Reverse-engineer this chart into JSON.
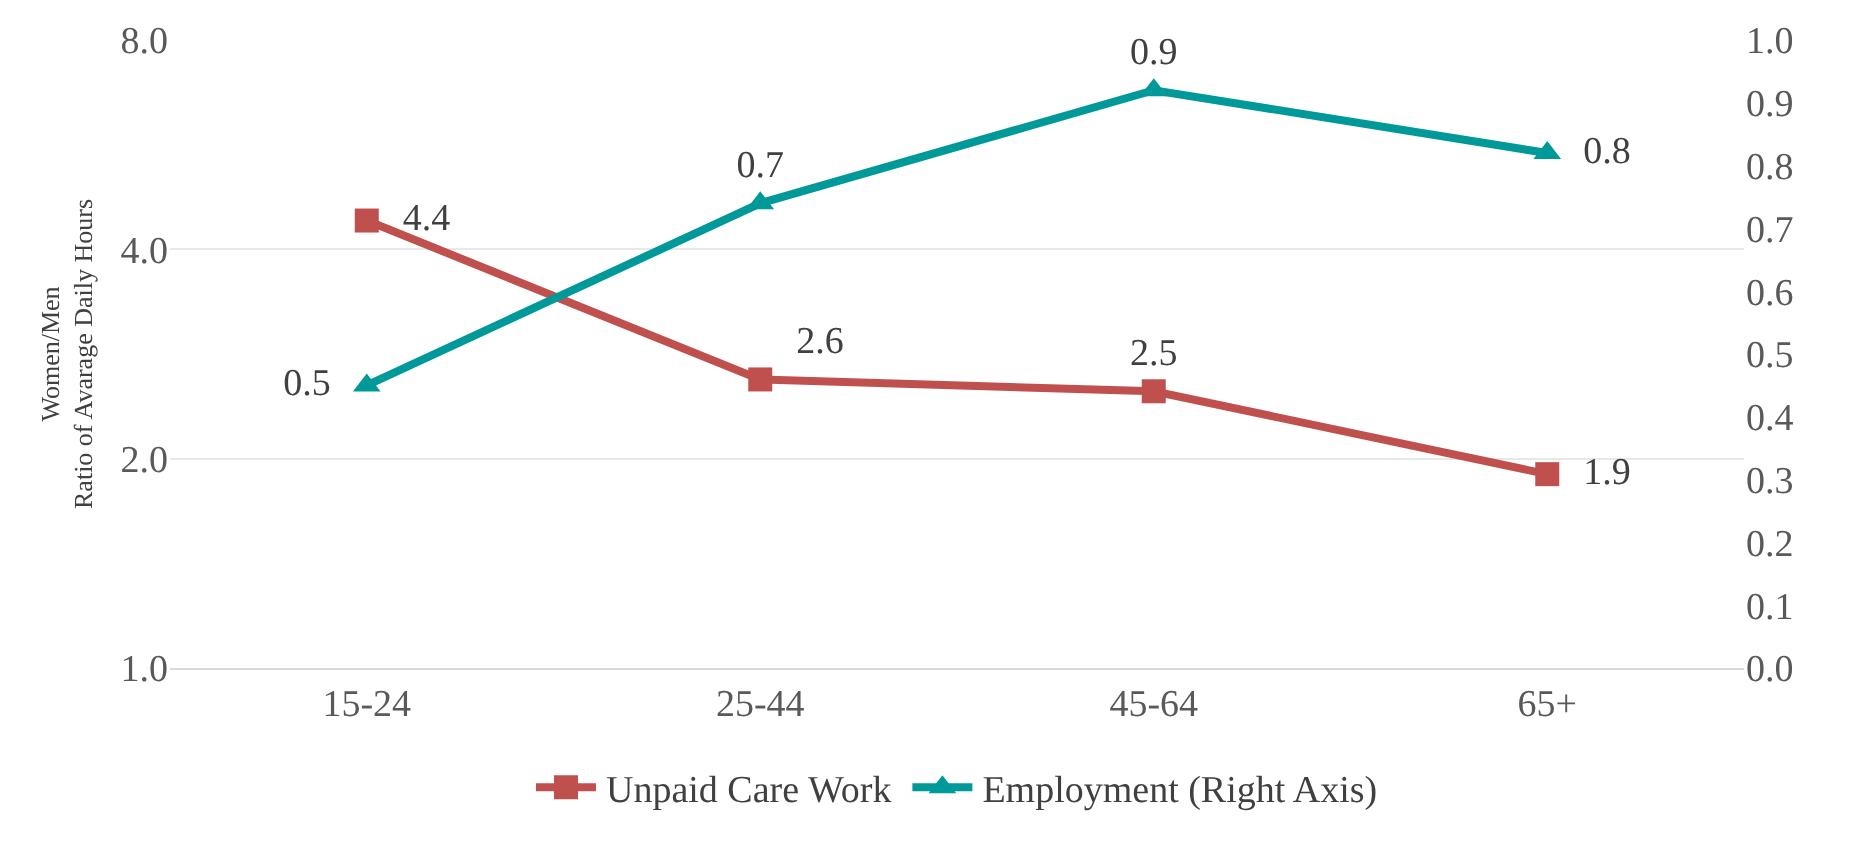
{
  "chart_data": {
    "type": "line",
    "ylabel": "Women/Men\nRatio of Avarage Daily Hours",
    "categories": [
      "15-24",
      "25-44",
      "45-64",
      "65+"
    ],
    "series": [
      {
        "name": "Unpaid Care Work",
        "color": "#c0504d",
        "marker": "square",
        "values": [
          4.4,
          2.6,
          2.5,
          1.9
        ],
        "value_labels": [
          "4.4",
          "2.6",
          "2.5",
          "1.9"
        ]
      },
      {
        "name": "Employment (Right Axis)",
        "color": "#009999",
        "marker": "triangle",
        "axis": "y2",
        "values": [
          0.45,
          0.74,
          0.92,
          0.82
        ],
        "value_labels": [
          "0.5",
          "0.7",
          "0.9",
          "0.8"
        ]
      }
    ],
    "log": "y",
    "ylim": [
      1,
      8
    ],
    "yticks": [
      {
        "value": 1,
        "label": "1.0"
      },
      {
        "value": 2,
        "label": "2.0"
      },
      {
        "value": 4,
        "label": "4.0"
      },
      {
        "value": 8,
        "label": "8.0"
      }
    ],
    "y2lim": [
      0,
      1
    ],
    "y2ticks": [
      {
        "value": 0,
        "label": "0.0"
      },
      {
        "value": 0.1,
        "label": "0.1"
      },
      {
        "value": 0.2,
        "label": "0.2"
      },
      {
        "value": 0.3,
        "label": "0.3"
      },
      {
        "value": 0.4,
        "label": "0.4"
      },
      {
        "value": 0.5,
        "label": "0.5"
      },
      {
        "value": 0.6,
        "label": "0.6"
      },
      {
        "value": 0.7,
        "label": "0.7"
      },
      {
        "value": 0.8,
        "label": "0.8"
      },
      {
        "value": 0.9,
        "label": "0.9"
      },
      {
        "value": 1,
        "label": "1.0"
      }
    ],
    "grid": "y",
    "legend": "bottom",
    "line_style": "solid"
  }
}
